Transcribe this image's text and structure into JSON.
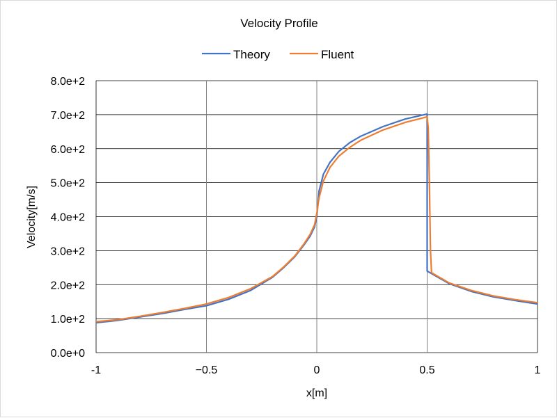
{
  "chart_data": {
    "type": "line",
    "title": "Velocity Profile",
    "xlabel": "x[m]",
    "ylabel": "Velocity[m/s]",
    "xlim": [
      -1,
      1
    ],
    "ylim": [
      0,
      800
    ],
    "x_ticks": [
      -1,
      -0.5,
      0,
      0.5,
      1
    ],
    "x_tick_labels": [
      "-1",
      "−0.5",
      "0",
      "0.5",
      "1"
    ],
    "y_ticks": [
      0,
      100,
      200,
      300,
      400,
      500,
      600,
      700,
      800
    ],
    "y_tick_labels": [
      "0.0e+0",
      "1.0e+2",
      "2.0e+2",
      "3.0e+2",
      "4.0e+2",
      "5.0e+2",
      "6.0e+2",
      "7.0e+2",
      "8.0e+2"
    ],
    "grid": true,
    "legend_position": "top",
    "series": [
      {
        "name": "Theory",
        "color": "#4472c4",
        "x": [
          -1,
          -0.9,
          -0.8,
          -0.7,
          -0.6,
          -0.5,
          -0.4,
          -0.3,
          -0.2,
          -0.15,
          -0.1,
          -0.06,
          -0.03,
          -0.01,
          0,
          0.01,
          0.03,
          0.06,
          0.1,
          0.15,
          0.2,
          0.3,
          0.4,
          0.5,
          0.5,
          0.6,
          0.7,
          0.8,
          0.9,
          1
        ],
        "y": [
          88,
          95,
          105,
          115,
          127,
          138,
          157,
          183,
          222,
          250,
          282,
          315,
          343,
          370,
          400,
          475,
          525,
          560,
          592,
          618,
          637,
          665,
          687,
          702,
          240,
          203,
          180,
          164,
          153,
          143
        ]
      },
      {
        "name": "Fluent",
        "color": "#ed7d31",
        "x": [
          -1,
          -0.9,
          -0.8,
          -0.7,
          -0.6,
          -0.5,
          -0.4,
          -0.3,
          -0.2,
          -0.15,
          -0.1,
          -0.06,
          -0.03,
          -0.01,
          0,
          0.01,
          0.03,
          0.06,
          0.1,
          0.15,
          0.2,
          0.3,
          0.4,
          0.49,
          0.5,
          0.505,
          0.51,
          0.515,
          0.52,
          0.6,
          0.7,
          0.8,
          0.9,
          1
        ],
        "y": [
          91,
          97,
          107,
          118,
          130,
          143,
          162,
          188,
          224,
          252,
          284,
          318,
          348,
          376,
          410,
          455,
          505,
          545,
          578,
          604,
          625,
          655,
          677,
          692,
          694,
          660,
          500,
          300,
          235,
          205,
          183,
          167,
          156,
          147
        ]
      }
    ]
  }
}
